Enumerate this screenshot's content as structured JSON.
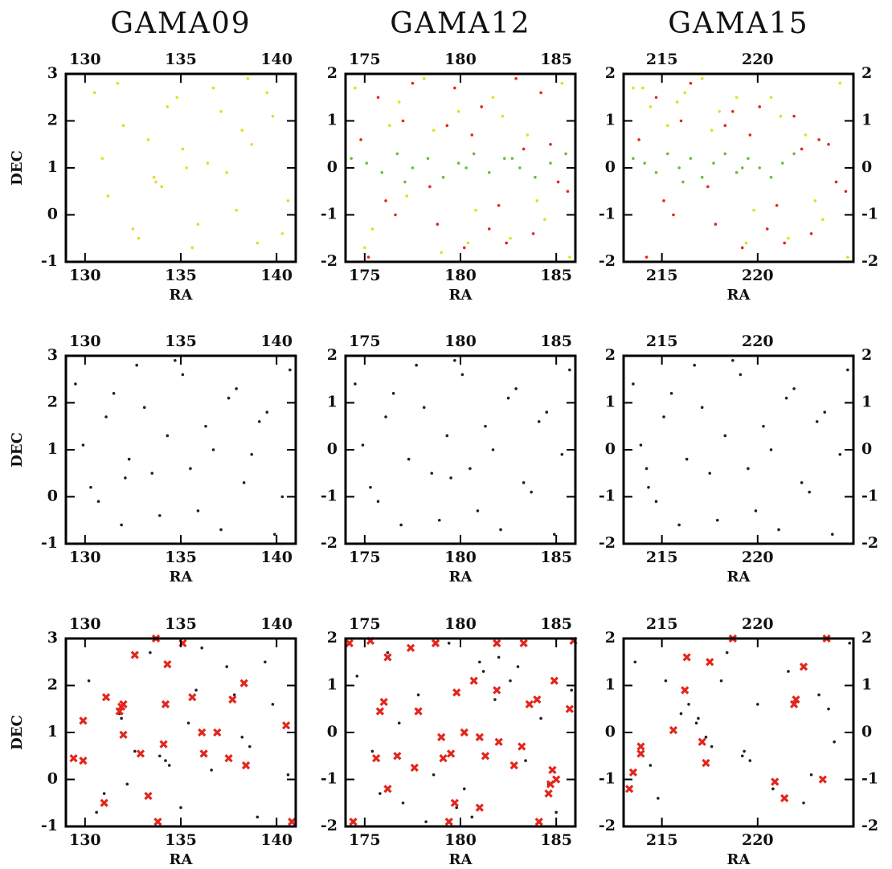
{
  "chart_data": [
    {
      "type": "scatter",
      "title": "GAMA09",
      "xlabel": "RA",
      "ylabel": "DEC",
      "xlim": [
        129,
        141
      ],
      "ylim": [
        -1,
        3
      ],
      "xticks": [
        130,
        135,
        140
      ],
      "yticks": [
        -1,
        0,
        1,
        2,
        3
      ],
      "series": [
        {
          "color": "#e6dc1e",
          "marker": "dot",
          "x": [
            130.5,
            131.2,
            132.0,
            132.8,
            133.6,
            134.3,
            135.1,
            135.9,
            136.7,
            137.4,
            138.2,
            139.0,
            139.8,
            140.6,
            130.9,
            131.7,
            132.5,
            133.3,
            134.0,
            134.8,
            135.6,
            136.4,
            137.1,
            137.9,
            138.7,
            139.5,
            140.3,
            133.7,
            135.3,
            138.5
          ],
          "values": [
            2.6,
            0.4,
            1.9,
            -0.5,
            0.8,
            2.3,
            1.4,
            -0.2,
            2.7,
            0.9,
            1.8,
            -0.6,
            2.1,
            0.3,
            1.2,
            2.8,
            -0.3,
            1.6,
            0.6,
            2.5,
            -0.7,
            1.1,
            2.2,
            0.1,
            1.5,
            2.6,
            -0.4,
            0.7,
            1.0,
            2.9
          ]
        }
      ]
    },
    {
      "type": "scatter",
      "title": "GAMA12",
      "xlabel": "RA",
      "xlim": [
        174,
        186
      ],
      "ylim": [
        -2,
        2
      ],
      "xticks": [
        175,
        180,
        185
      ],
      "yticks": [
        -2,
        -1,
        0,
        1,
        2
      ],
      "series": [
        {
          "color": "#e6dc1e",
          "marker": "dot",
          "x": [
            174.5,
            175.4,
            176.3,
            177.2,
            178.1,
            179.0,
            179.9,
            180.8,
            181.7,
            182.6,
            183.5,
            184.4,
            185.3,
            175.0,
            176.8,
            178.6,
            180.4,
            182.2,
            184.0,
            185.7
          ],
          "values": [
            1.7,
            -1.3,
            0.9,
            -0.6,
            1.9,
            -1.8,
            1.2,
            -0.9,
            1.5,
            -1.5,
            0.7,
            -1.1,
            1.8,
            -1.7,
            1.4,
            0.8,
            -1.6,
            1.1,
            -0.7,
            -1.9
          ]
        },
        {
          "color": "#e3261c",
          "marker": "dot",
          "x": [
            174.8,
            175.7,
            176.6,
            177.5,
            178.4,
            179.3,
            180.2,
            181.1,
            182.0,
            182.9,
            183.8,
            184.7,
            185.6,
            175.2,
            177.0,
            178.8,
            180.6,
            182.4,
            184.2,
            185.1,
            176.1,
            179.7,
            181.5,
            183.3
          ],
          "values": [
            0.6,
            1.5,
            -1.0,
            1.8,
            -0.4,
            0.9,
            -1.7,
            1.3,
            -0.8,
            1.9,
            -1.4,
            0.5,
            -0.5,
            -1.9,
            1.0,
            -1.2,
            0.7,
            -1.6,
            1.6,
            -0.3,
            -0.7,
            1.7,
            -1.3,
            0.4
          ]
        },
        {
          "color": "#6cbd3a",
          "marker": "dot",
          "x": [
            174.3,
            175.1,
            175.9,
            176.7,
            177.5,
            178.3,
            179.1,
            179.9,
            180.7,
            181.5,
            182.3,
            183.1,
            183.9,
            184.7,
            185.5,
            177.1,
            180.3,
            182.7
          ],
          "values": [
            0.2,
            0.1,
            -0.1,
            0.3,
            0.0,
            0.2,
            -0.2,
            0.1,
            0.3,
            -0.1,
            0.2,
            0.0,
            -0.2,
            0.1,
            0.3,
            -0.3,
            0.0,
            0.2
          ]
        }
      ]
    },
    {
      "type": "scatter",
      "title": "GAMA15",
      "xlabel": "RA",
      "xlim": [
        213,
        225
      ],
      "ylim": [
        -2,
        2
      ],
      "xticks": [
        215,
        220
      ],
      "yticks": [
        -2,
        -1,
        0,
        1,
        2
      ],
      "series": [
        {
          "color": "#e6dc1e",
          "marker": "dot",
          "x": [
            213.5,
            214.4,
            215.3,
            216.2,
            217.1,
            218.0,
            218.9,
            219.8,
            220.7,
            221.6,
            222.5,
            223.4,
            224.3,
            214.0,
            215.8,
            217.6,
            219.4,
            221.2,
            223.0,
            224.7
          ],
          "values": [
            1.7,
            1.3,
            0.9,
            1.6,
            1.9,
            1.2,
            1.5,
            -0.9,
            1.5,
            -1.5,
            0.7,
            -1.1,
            1.8,
            1.7,
            1.4,
            0.8,
            -1.6,
            1.1,
            -0.7,
            -1.9
          ]
        },
        {
          "color": "#e3261c",
          "marker": "dot",
          "x": [
            213.8,
            214.7,
            215.6,
            216.5,
            217.4,
            218.3,
            219.2,
            220.1,
            221.0,
            221.9,
            222.8,
            223.7,
            224.6,
            214.2,
            216.0,
            217.8,
            219.6,
            221.4,
            223.2,
            224.1,
            215.1,
            218.7,
            220.5,
            222.3
          ],
          "values": [
            0.6,
            1.5,
            -1.0,
            1.8,
            -0.4,
            0.9,
            -1.7,
            1.3,
            -0.8,
            1.1,
            -1.4,
            0.5,
            -0.5,
            -1.9,
            1.0,
            -1.2,
            0.7,
            -1.6,
            0.6,
            -0.3,
            -0.7,
            1.2,
            -1.3,
            0.4
          ]
        },
        {
          "color": "#6cbd3a",
          "marker": "dot",
          "x": [
            213.5,
            214.1,
            214.7,
            215.3,
            215.9,
            216.5,
            217.1,
            217.7,
            218.3,
            218.9,
            219.5,
            220.1,
            220.7,
            221.3,
            221.9,
            216.1,
            219.2
          ],
          "values": [
            0.2,
            0.1,
            -0.1,
            0.3,
            0.0,
            0.2,
            -0.2,
            0.1,
            0.3,
            -0.1,
            0.2,
            0.0,
            -0.2,
            0.1,
            0.3,
            -0.3,
            0.0
          ]
        }
      ]
    },
    {
      "type": "scatter",
      "xlabel": "RA",
      "ylabel": "DEC",
      "xlim": [
        129,
        141
      ],
      "ylim": [
        -1,
        3
      ],
      "xticks": [
        130,
        135,
        140
      ],
      "yticks": [
        -1,
        0,
        1,
        2,
        3
      ],
      "series": [
        {
          "color": "#222222",
          "marker": "dot",
          "x": [
            129.5,
            130.3,
            131.1,
            131.9,
            132.7,
            133.5,
            134.3,
            135.1,
            135.9,
            136.7,
            137.5,
            138.3,
            139.1,
            139.9,
            140.7,
            129.9,
            130.7,
            131.5,
            132.3,
            133.1,
            133.9,
            134.7,
            135.5,
            136.3,
            137.1,
            137.9,
            138.7,
            139.5,
            140.3,
            132.1
          ],
          "values": [
            2.4,
            0.2,
            1.7,
            -0.6,
            2.8,
            0.5,
            1.3,
            2.6,
            -0.3,
            1.0,
            2.1,
            0.3,
            1.6,
            -0.8,
            2.7,
            1.1,
            -0.1,
            2.2,
            0.8,
            1.9,
            -0.4,
            2.9,
            0.6,
            1.5,
            -0.7,
            2.3,
            0.9,
            1.8,
            0.0,
            0.4
          ]
        }
      ]
    },
    {
      "type": "scatter",
      "xlabel": "RA",
      "xlim": [
        174,
        186
      ],
      "ylim": [
        -2,
        2
      ],
      "xticks": [
        175,
        180,
        185
      ],
      "yticks": [
        -2,
        -1,
        0,
        1,
        2
      ],
      "series": [
        {
          "color": "#222222",
          "marker": "dot",
          "x": [
            174.5,
            175.3,
            176.1,
            176.9,
            177.7,
            178.5,
            179.3,
            180.1,
            180.9,
            181.7,
            182.5,
            183.3,
            184.1,
            184.9,
            185.7,
            174.9,
            175.7,
            176.5,
            177.3,
            178.1,
            178.9,
            179.7,
            180.5,
            181.3,
            182.1,
            182.9,
            183.7,
            184.5,
            185.3,
            179.5
          ],
          "values": [
            1.4,
            -0.8,
            0.7,
            -1.6,
            1.8,
            -0.5,
            0.3,
            1.6,
            -1.3,
            0.0,
            1.1,
            -0.7,
            0.6,
            -1.8,
            1.7,
            0.1,
            -1.1,
            1.2,
            -0.2,
            0.9,
            -1.5,
            1.9,
            -0.4,
            0.5,
            -1.7,
            1.3,
            -0.9,
            0.8,
            -0.1,
            -0.6
          ]
        }
      ]
    },
    {
      "type": "scatter",
      "xlabel": "RA",
      "xlim": [
        213,
        225
      ],
      "ylim": [
        -2,
        2
      ],
      "xticks": [
        215,
        220
      ],
      "yticks": [
        -2,
        -1,
        0,
        1,
        2
      ],
      "series": [
        {
          "color": "#222222",
          "marker": "dot",
          "x": [
            213.5,
            214.3,
            215.1,
            215.9,
            216.7,
            217.5,
            218.3,
            219.1,
            219.9,
            220.7,
            221.5,
            222.3,
            223.1,
            223.9,
            224.7,
            213.9,
            214.7,
            215.5,
            216.3,
            217.1,
            217.9,
            218.7,
            219.5,
            220.3,
            221.1,
            221.9,
            222.7,
            223.5,
            224.3,
            214.2
          ],
          "values": [
            1.4,
            -0.8,
            0.7,
            -1.6,
            1.8,
            -0.5,
            0.3,
            1.6,
            -1.3,
            0.0,
            1.1,
            -0.7,
            0.6,
            -1.8,
            1.7,
            0.1,
            -1.1,
            1.2,
            -0.2,
            0.9,
            -1.5,
            1.9,
            -0.4,
            0.5,
            -1.7,
            1.3,
            -0.9,
            0.8,
            -0.1,
            -0.4
          ]
        }
      ]
    },
    {
      "type": "scatter",
      "xlabel": "RA",
      "ylabel": "DEC",
      "xlim": [
        129,
        141
      ],
      "ylim": [
        -1,
        3
      ],
      "xticks": [
        130,
        135,
        140
      ],
      "yticks": [
        -1,
        0,
        1,
        2,
        3
      ],
      "series": [
        {
          "color": "#222222",
          "marker": "dot",
          "x": [
            130.2,
            131.0,
            131.8,
            132.6,
            133.4,
            134.2,
            135.0,
            135.8,
            136.6,
            137.4,
            138.2,
            139.0,
            139.8,
            140.6,
            131.9,
            133.9,
            134.4,
            136.1,
            137.8,
            138.6,
            132.2,
            135.4,
            139.4,
            130.6
          ],
          "values": [
            2.1,
            -0.3,
            1.4,
            0.6,
            2.7,
            0.4,
            -0.6,
            1.9,
            0.2,
            2.4,
            0.9,
            -0.8,
            1.6,
            0.1,
            1.3,
            0.5,
            0.3,
            2.8,
            1.8,
            0.7,
            -0.1,
            1.2,
            2.5,
            -0.7
          ]
        },
        {
          "color": "#e3261c",
          "marker": "cross",
          "x": [
            133.7,
            135.1,
            132.6,
            134.3,
            138.3,
            131.1,
            135.6,
            137.7,
            134.2,
            132.0,
            131.8,
            129.9,
            140.5,
            132.0,
            136.1,
            136.9,
            134.1,
            132.9,
            136.2,
            129.4,
            129.9,
            137.5,
            138.4,
            133.3,
            131.0,
            133.8,
            140.8,
            131.9
          ],
          "values": [
            3.0,
            2.9,
            2.65,
            2.45,
            2.05,
            1.75,
            1.75,
            1.7,
            1.6,
            1.6,
            1.45,
            1.25,
            1.15,
            0.95,
            1.0,
            1.0,
            0.75,
            0.55,
            0.55,
            0.45,
            0.4,
            0.45,
            0.3,
            -0.35,
            -0.5,
            -0.9,
            -0.9,
            1.55
          ]
        }
      ]
    },
    {
      "type": "scatter",
      "xlabel": "RA",
      "xlim": [
        174,
        186
      ],
      "ylim": [
        -2,
        2
      ],
      "xticks": [
        175,
        180,
        185
      ],
      "yticks": [
        -2,
        -1,
        0,
        1,
        2
      ],
      "series": [
        {
          "color": "#222222",
          "marker": "dot",
          "x": [
            174.6,
            175.4,
            176.2,
            177.0,
            177.8,
            178.6,
            179.4,
            180.2,
            181.0,
            181.8,
            182.6,
            183.4,
            184.2,
            185.0,
            185.8,
            181.2,
            182.0,
            183.0,
            180.6,
            179.8,
            176.8,
            178.2,
            184.6,
            175.8
          ],
          "values": [
            1.2,
            -0.4,
            1.7,
            -1.5,
            0.8,
            -0.9,
            1.9,
            -1.2,
            1.5,
            0.7,
            1.1,
            -0.6,
            0.3,
            -1.7,
            0.9,
            1.3,
            1.6,
            1.4,
            -1.8,
            -1.6,
            0.2,
            -1.9,
            -1.1,
            -1.3
          ]
        },
        {
          "color": "#e3261c",
          "marker": "cross",
          "x": [
            174.2,
            175.3,
            177.4,
            176.2,
            178.7,
            181.9,
            183.3,
            185.9,
            176.0,
            175.8,
            177.8,
            180.7,
            181.9,
            184.0,
            183.6,
            184.9,
            185.7,
            179.8,
            180.2,
            181.0,
            182.0,
            183.2,
            179.0,
            179.5,
            179.1,
            176.7,
            175.6,
            177.6,
            181.3,
            182.8,
            184.8,
            185.0,
            184.7,
            184.6,
            176.2,
            179.7,
            174.4,
            184.1,
            181.0,
            179.4
          ],
          "values": [
            1.9,
            1.95,
            1.8,
            1.6,
            1.9,
            1.9,
            1.9,
            1.95,
            0.65,
            0.45,
            0.45,
            1.1,
            0.9,
            0.7,
            0.6,
            1.1,
            0.5,
            0.85,
            0.0,
            -0.1,
            -0.2,
            -0.3,
            -0.1,
            -0.45,
            -0.55,
            -0.5,
            -0.55,
            -0.75,
            -0.5,
            -0.7,
            -0.8,
            -1.0,
            -1.1,
            -1.3,
            -1.2,
            -1.5,
            -1.9,
            -1.9,
            -1.6,
            -1.9
          ]
        }
      ]
    },
    {
      "type": "scatter",
      "xlabel": "RA",
      "xlim": [
        213,
        225
      ],
      "ylim": [
        -2,
        2
      ],
      "xticks": [
        215,
        220
      ],
      "yticks": [
        -2,
        -1,
        0,
        1,
        2
      ],
      "series": [
        {
          "color": "#222222",
          "marker": "dot",
          "x": [
            213.6,
            214.4,
            215.2,
            216.0,
            216.8,
            217.6,
            218.4,
            219.2,
            220.0,
            220.8,
            221.6,
            222.4,
            223.2,
            224.0,
            224.8,
            216.4,
            216.9,
            217.3,
            219.3,
            219.6,
            214.8,
            222.8,
            223.7,
            218.1
          ],
          "values": [
            1.5,
            -0.7,
            1.1,
            0.4,
            0.2,
            -0.3,
            1.7,
            -0.5,
            0.6,
            -1.2,
            1.3,
            -1.5,
            0.8,
            -0.2,
            1.9,
            0.6,
            0.3,
            -0.1,
            -0.4,
            -0.6,
            -1.4,
            -0.9,
            0.5,
            1.1
          ]
        },
        {
          "color": "#e3261c",
          "marker": "cross",
          "x": [
            216.3,
            217.5,
            216.2,
            215.6,
            217.1,
            217.3,
            213.9,
            213.9,
            213.5,
            213.3,
            220.9,
            221.4,
            223.4,
            221.9,
            222.0,
            222.4,
            218.7,
            223.6
          ],
          "values": [
            1.6,
            1.5,
            0.9,
            0.05,
            -0.2,
            -0.65,
            -0.3,
            -0.45,
            -0.85,
            -1.2,
            -1.05,
            -1.4,
            -1.0,
            0.6,
            0.7,
            1.4,
            2.0,
            2.0
          ]
        }
      ]
    }
  ]
}
